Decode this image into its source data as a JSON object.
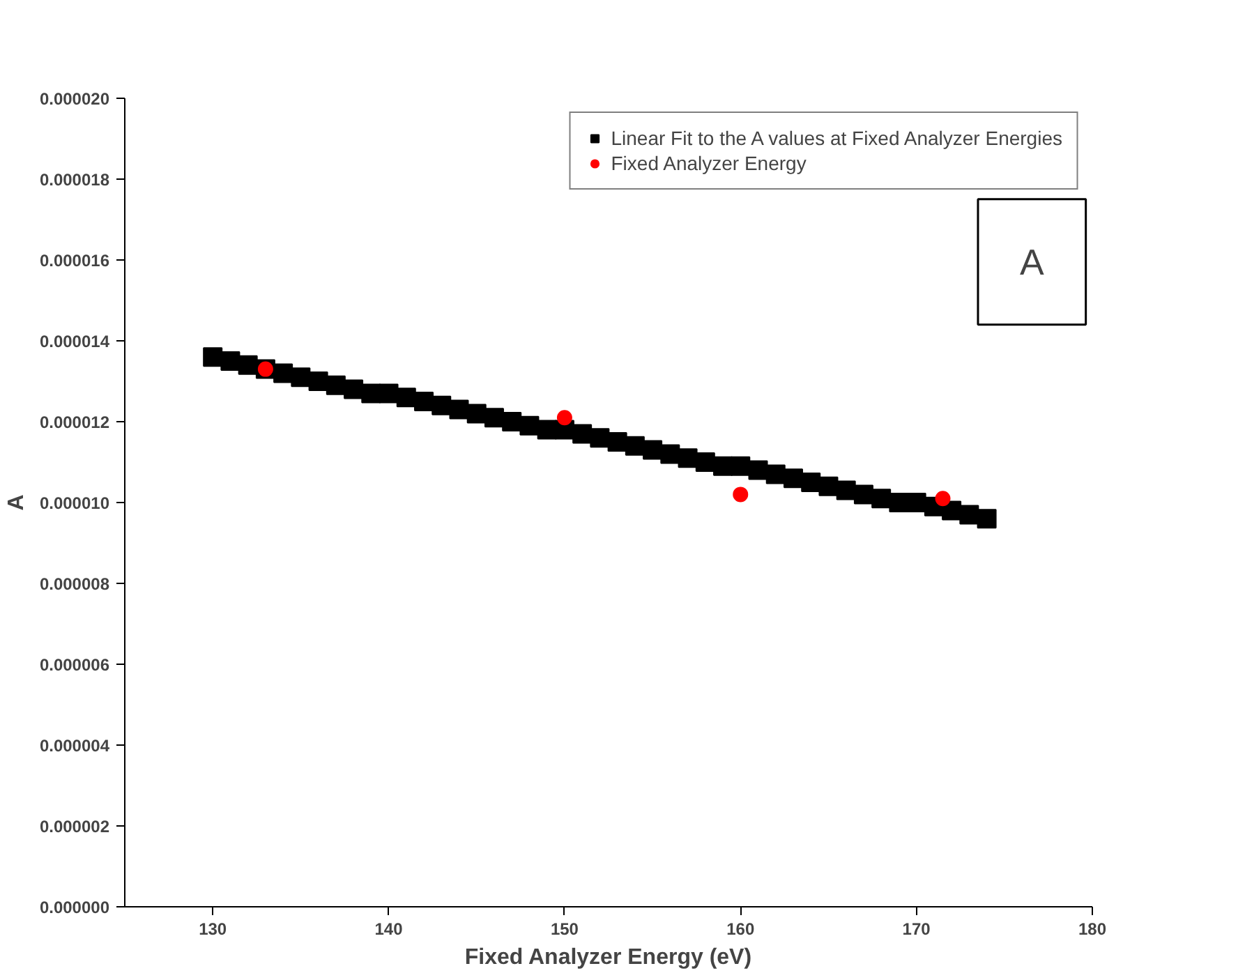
{
  "chart_data": {
    "type": "scatter",
    "xlabel": "Fixed Analyzer Energy (eV)",
    "ylabel": "A",
    "xlim": [
      125,
      180
    ],
    "xticks": [
      130,
      140,
      150,
      160,
      170,
      180
    ],
    "ylim": [
      0,
      2e-05
    ],
    "yticks": [
      {
        "value": 0,
        "label": "0.000000"
      },
      {
        "value": 2e-06,
        "label": "0.000002"
      },
      {
        "value": 4e-06,
        "label": "0.000004"
      },
      {
        "value": 6e-06,
        "label": "0.000006"
      },
      {
        "value": 8e-06,
        "label": "0.000008"
      },
      {
        "value": 1e-05,
        "label": "0.000010"
      },
      {
        "value": 1.2e-05,
        "label": "0.000012"
      },
      {
        "value": 1.4e-05,
        "label": "0.000014"
      },
      {
        "value": 1.6e-05,
        "label": "0.000016"
      },
      {
        "value": 1.8e-05,
        "label": "0.000018"
      },
      {
        "value": 2e-05,
        "label": "0.000020"
      }
    ],
    "grid": false,
    "legend": "top right",
    "annotations": [
      "A"
    ],
    "series": [
      {
        "name": "Linear Fit to the A values at Fixed Analyzer Energies",
        "color": "#000000",
        "marker": "square",
        "x": [
          130,
          131,
          132,
          133,
          134,
          135,
          136,
          137,
          138,
          139,
          140,
          141,
          142,
          143,
          144,
          145,
          146,
          147,
          148,
          149,
          150,
          151,
          152,
          153,
          154,
          155,
          156,
          157,
          158,
          159,
          160,
          161,
          162,
          163,
          164,
          165,
          166,
          167,
          168,
          169,
          170,
          171,
          172,
          173,
          174
        ],
        "values": [
          1.36e-05,
          1.35e-05,
          1.34e-05,
          1.33e-05,
          1.32e-05,
          1.31e-05,
          1.3e-05,
          1.29e-05,
          1.28e-05,
          1.27e-05,
          1.27e-05,
          1.26e-05,
          1.25e-05,
          1.24e-05,
          1.23e-05,
          1.22e-05,
          1.21e-05,
          1.2e-05,
          1.19e-05,
          1.18e-05,
          1.18e-05,
          1.17e-05,
          1.16e-05,
          1.15e-05,
          1.14e-05,
          1.13e-05,
          1.12e-05,
          1.11e-05,
          1.1e-05,
          1.09e-05,
          1.09e-05,
          1.08e-05,
          1.07e-05,
          1.06e-05,
          1.05e-05,
          1.04e-05,
          1.03e-05,
          1.02e-05,
          1.01e-05,
          1e-05,
          1e-05,
          9.9e-06,
          9.8e-06,
          9.7e-06,
          9.6e-06
        ]
      },
      {
        "name": "Fixed Analyzer Energy",
        "color": "#ff0000",
        "marker": "circle",
        "x": [
          133,
          150,
          160,
          171.5
        ],
        "values": [
          1.33e-05,
          1.21e-05,
          1.02e-05,
          1.01e-05
        ]
      }
    ]
  }
}
